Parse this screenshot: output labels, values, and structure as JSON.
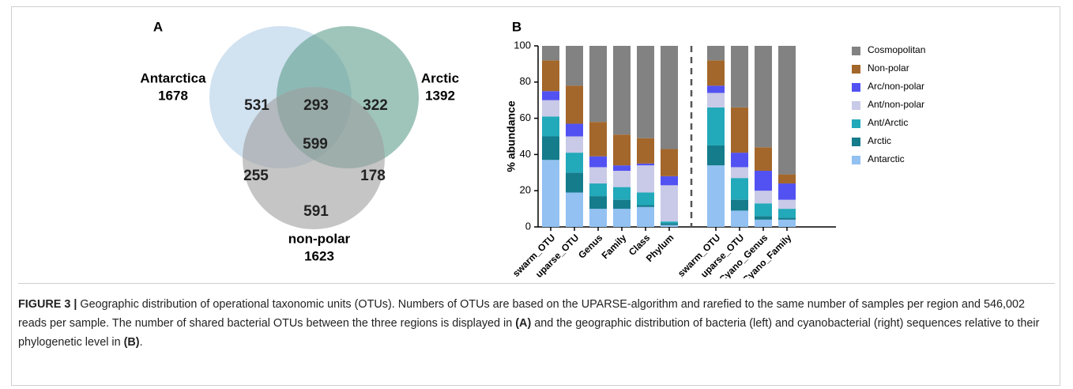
{
  "chart_data": [
    {
      "type": "venn",
      "panel": "A",
      "sets": [
        {
          "name": "Antarctica",
          "total": 1678,
          "color": "#c9ddef"
        },
        {
          "name": "Arctic",
          "total": 1392,
          "color": "#5f9f8e"
        },
        {
          "name": "non-polar",
          "total": 1623,
          "color": "#9e9e9e"
        }
      ],
      "regions": {
        "Antarctica only": 531,
        "Antarctica and Arctic": 293,
        "Arctic only": 322,
        "all three": 599,
        "Antarctica and non-polar": 255,
        "Arctic and non-polar": 178,
        "non-polar only": 591
      }
    },
    {
      "type": "stacked-bar",
      "panel": "B",
      "y_label": "% abundance",
      "categories": [
        "swarm_OTU",
        "uparse_OTU",
        "Genus",
        "Family",
        "Class",
        "Phylum",
        "Cyano_swarm_OTU",
        "Cyano_uparse_OTU",
        "Cyano_Genus",
        "Cyano_Family"
      ],
      "series": [
        {
          "name": "Antarctic",
          "color": "#92c1f2",
          "values": [
            37,
            19,
            10,
            10,
            11,
            1,
            34,
            9,
            4,
            4
          ]
        },
        {
          "name": "Arctic",
          "color": "#157c8c",
          "values": [
            13,
            11,
            7,
            5,
            1,
            1,
            11,
            6,
            2,
            1
          ]
        },
        {
          "name": "Ant/Arctic",
          "color": "#22a9ba",
          "values": [
            11,
            11,
            7,
            7,
            7,
            1,
            21,
            12,
            7,
            5
          ]
        },
        {
          "name": "Ant/non-polar",
          "color": "#c9c9e8",
          "values": [
            9,
            9,
            9,
            9,
            15,
            20,
            8,
            6,
            7,
            5
          ]
        },
        {
          "name": "Arc/non-polar",
          "color": "#5252f2",
          "values": [
            5,
            7,
            6,
            3,
            1,
            5,
            4,
            8,
            11,
            9
          ]
        },
        {
          "name": "Non-polar",
          "color": "#a4672b",
          "values": [
            17,
            21,
            19,
            17,
            14,
            15,
            14,
            25,
            13,
            5
          ]
        },
        {
          "name": "Cosmopolitan",
          "color": "#828282",
          "values": [
            8,
            22,
            42,
            49,
            51,
            57,
            8,
            34,
            56,
            71
          ]
        }
      ],
      "ylim": [
        0,
        100
      ],
      "yticks": [
        0,
        20,
        40,
        60,
        80,
        100
      ],
      "legend": "right"
    }
  ],
  "caption": {
    "label": "FIGURE 3 |",
    "parts": [
      " Geographic distribution of operational taxonomic units (OTUs). Numbers of OTUs are based on the UPARSE-algorithm and rarefied to the same number of samples per region and 546,002 reads per sample. The number of shared bacterial OTUs between the three regions is displayed in ",
      "(A)",
      " and the geographic distribution of bacteria (left) and cyanobacterial (right) sequences relative to their phylogenetic level in ",
      "(B)",
      "."
    ]
  }
}
